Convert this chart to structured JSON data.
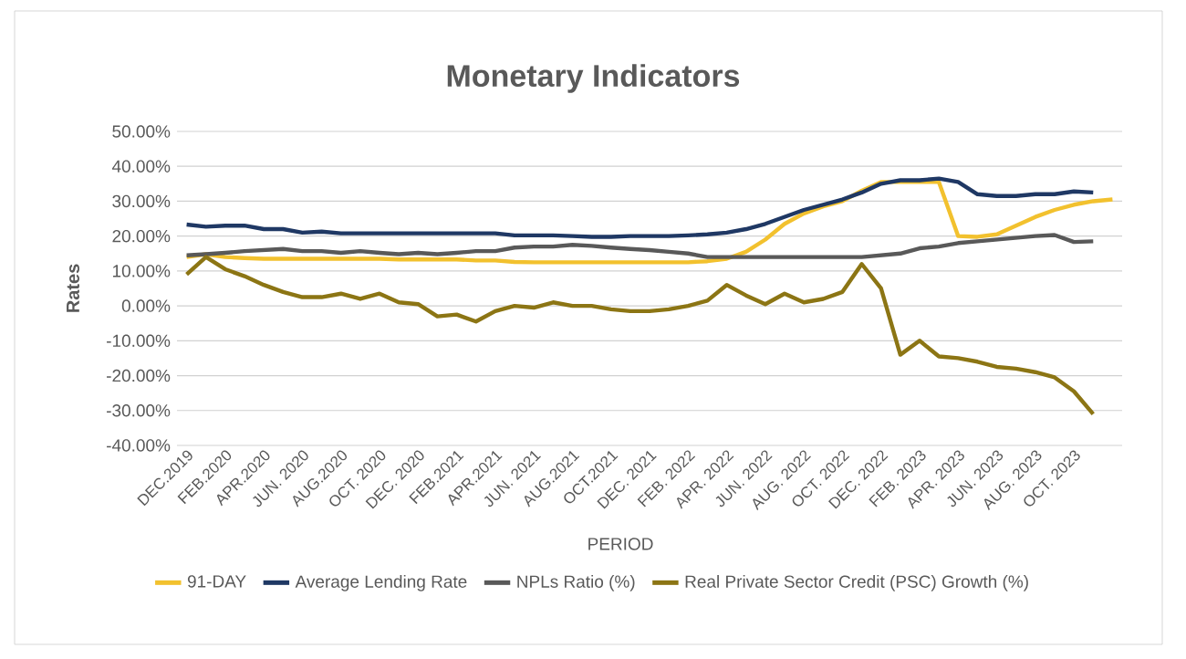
{
  "chart_data": {
    "type": "line",
    "title": "Monetary Indicators",
    "xlabel": "PERIOD",
    "ylabel": "Rates",
    "categories": [
      "DEC.2019",
      null,
      "FEB.2020",
      null,
      "APR.2020",
      null,
      "JUN. 2020",
      null,
      "AUG.2020",
      null,
      "OCT. 2020",
      null,
      "DEC. 2020",
      null,
      "FEB.2021",
      null,
      "APR.2021",
      null,
      "JUN. 2021",
      null,
      "AUG.2021",
      null,
      "OCT.2021",
      null,
      "DEC. 2021",
      null,
      "FEB. 2022",
      null,
      "APR. 2022",
      null,
      "JUN. 2022",
      null,
      "AUG. 2022",
      null,
      "OCT. 2022",
      null,
      "DEC. 2022",
      null,
      "FEB. 2023",
      null,
      "APR. 2023",
      null,
      "JUN. 2023",
      null,
      "AUG. 2023",
      null,
      "OCT. 2023",
      null,
      null
    ],
    "series": [
      {
        "name": "91-DAY",
        "color": "#f2c12e",
        "values": [
          14,
          14.8,
          14,
          13.7,
          13.5,
          13.5,
          13.5,
          13.5,
          13.5,
          13.5,
          13.5,
          13.3,
          13.3,
          13.3,
          13.3,
          13,
          13,
          12.6,
          12.5,
          12.5,
          12.5,
          12.5,
          12.5,
          12.5,
          12.5,
          12.5,
          12.5,
          12.8,
          13.5,
          15.5,
          19,
          23.5,
          26.5,
          28.5,
          30,
          33,
          35.5,
          35.5,
          35.5,
          35.5,
          20,
          19.8,
          20.5,
          23,
          25.5,
          27.5,
          29,
          30,
          30.5
        ]
      },
      {
        "name": "Average Lending Rate",
        "color": "#1f3864",
        "values": [
          23.3,
          22.7,
          23,
          23,
          22,
          22,
          21,
          21.3,
          20.8,
          20.8,
          20.8,
          20.8,
          20.8,
          20.8,
          20.8,
          20.8,
          20.8,
          20.2,
          20.2,
          20.2,
          20,
          19.8,
          19.8,
          20,
          20,
          20,
          20.2,
          20.5,
          21,
          22,
          23.5,
          25.5,
          27.5,
          29,
          30.5,
          32.5,
          35,
          36,
          36,
          36.5,
          35.5,
          32,
          31.5,
          31.5,
          32,
          32,
          32.8,
          32.5,
          null
        ]
      },
      {
        "name": "NPLs Ratio (%)",
        "color": "#595959",
        "values": [
          14.5,
          14.8,
          15.2,
          15.7,
          16,
          16.3,
          15.7,
          15.7,
          15.2,
          15.7,
          15.2,
          14.8,
          15.2,
          14.8,
          15.2,
          15.7,
          15.7,
          16.7,
          17,
          17,
          17.5,
          17.2,
          16.7,
          16.3,
          16,
          15.5,
          15,
          14,
          14,
          14,
          14,
          14,
          14,
          14,
          14,
          14,
          14.5,
          15,
          16.5,
          17,
          18,
          18.5,
          19,
          19.5,
          20,
          20.3,
          18.3,
          18.5,
          null
        ]
      },
      {
        "name": "Real Private Sector Credit (PSC) Growth (%)",
        "color": "#8c7514",
        "values": [
          9,
          14,
          10.5,
          8.5,
          6,
          4,
          2.5,
          2.5,
          3.5,
          2,
          3.5,
          1,
          0.5,
          -3,
          -2.5,
          -4.5,
          -1.5,
          0,
          -0.5,
          1,
          0,
          0,
          -1,
          -1.5,
          -1.5,
          -1,
          0,
          1.5,
          6,
          3,
          0.5,
          3.5,
          1,
          2,
          4,
          12,
          5,
          -14,
          -10,
          -14.5,
          -15,
          -16,
          -17.5,
          -18,
          -19,
          -20.5,
          -24.5,
          -31,
          null
        ]
      }
    ],
    "ylim": [
      -40,
      50
    ],
    "yticks": [
      {
        "value": -40,
        "label": "-40.00%"
      },
      {
        "value": -30,
        "label": "-30.00%"
      },
      {
        "value": -20,
        "label": "-20.00%"
      },
      {
        "value": -10,
        "label": "-10.00%"
      },
      {
        "value": 0,
        "label": "0.00%"
      },
      {
        "value": 10,
        "label": "10.00%"
      },
      {
        "value": 20,
        "label": "20.00%"
      },
      {
        "value": 30,
        "label": "30.00%"
      },
      {
        "value": 40,
        "label": "40.00%"
      },
      {
        "value": 50,
        "label": "50.00%"
      }
    ],
    "grid": "y",
    "legend": "bottom"
  }
}
